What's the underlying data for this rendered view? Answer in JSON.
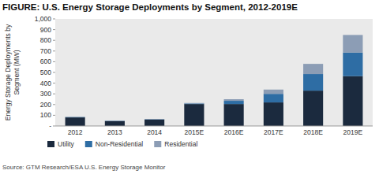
{
  "chart_data": {
    "type": "bar",
    "stacked": true,
    "title": "FIGURE: U.S. Energy Storage Deployments by Segment, 2012-2019E",
    "y_label": "Energy Storage Deployments by\nSegment (MW)",
    "annotations": [
      "Source: GTM Research/ESA U.S. Energy Storage Monitor"
    ],
    "categories": [
      "2012",
      "2013",
      "2014",
      "2015E",
      "2016E",
      "2017E",
      "2018E",
      "2019E"
    ],
    "series": [
      {
        "name": "Utility",
        "color": "#1b2a3e",
        "values": [
          80,
          45,
          60,
          205,
          205,
          220,
          330,
          465
        ]
      },
      {
        "name": "Non-Residential",
        "color": "#2e6da4",
        "values": [
          3,
          3,
          3,
          5,
          30,
          80,
          155,
          220
        ]
      },
      {
        "name": "Residential",
        "color": "#8c9db5",
        "values": [
          3,
          3,
          3,
          5,
          15,
          40,
          95,
          165
        ]
      }
    ],
    "ylim": [
      0,
      1000
    ],
    "yticks": [
      {
        "value": 0,
        "label": "-"
      },
      100,
      200,
      300,
      400,
      500,
      600,
      700,
      800,
      900,
      {
        "value": 1000,
        "label": "1,000"
      }
    ],
    "grid": false,
    "legend": "bottom"
  }
}
